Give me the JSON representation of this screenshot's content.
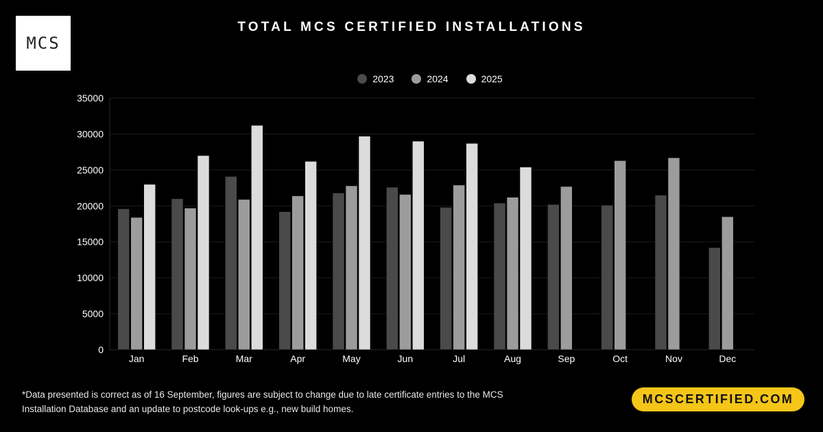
{
  "logo": {
    "text": "MCS"
  },
  "colors": {
    "background": "#000000",
    "series_2023": "#4a4a4a",
    "series_2024": "#9c9c9c",
    "series_2025": "#dcdcdc",
    "gridline": "#1c1c1c",
    "cta_background": "#f5c518"
  },
  "footnote": {
    "line1": "*Data presented is correct as of 16 September, figures are subject to change due to late certificate entries to the MCS",
    "line2": "Installation Database and an update to postcode look-ups e.g., new build homes."
  },
  "cta": {
    "label": "MCSCERTIFIED.COM"
  },
  "chart_data": {
    "type": "bar",
    "title": "TOTAL MCS CERTIFIED INSTALLATIONS",
    "xlabel": "",
    "ylabel": "",
    "ylim": [
      0,
      35000
    ],
    "yticks": [
      0,
      5000,
      10000,
      15000,
      20000,
      25000,
      30000,
      35000
    ],
    "grid": true,
    "legend_position": "top-center",
    "categories": [
      "Jan",
      "Feb",
      "Mar",
      "Apr",
      "May",
      "Jun",
      "Jul",
      "Aug",
      "Sep",
      "Oct",
      "Nov",
      "Dec"
    ],
    "series": [
      {
        "name": "2023",
        "color": "#4a4a4a",
        "values": [
          19600,
          21000,
          24100,
          19200,
          21800,
          22600,
          19800,
          20400,
          20200,
          20100,
          21500,
          14200
        ]
      },
      {
        "name": "2024",
        "color": "#9c9c9c",
        "values": [
          18400,
          19700,
          20900,
          21400,
          22800,
          21600,
          22900,
          21200,
          22700,
          26300,
          26700,
          18500
        ]
      },
      {
        "name": "2025",
        "color": "#dcdcdc",
        "values": [
          23000,
          27000,
          31200,
          26200,
          29700,
          29000,
          28700,
          25400,
          null,
          null,
          null,
          null
        ]
      }
    ]
  }
}
